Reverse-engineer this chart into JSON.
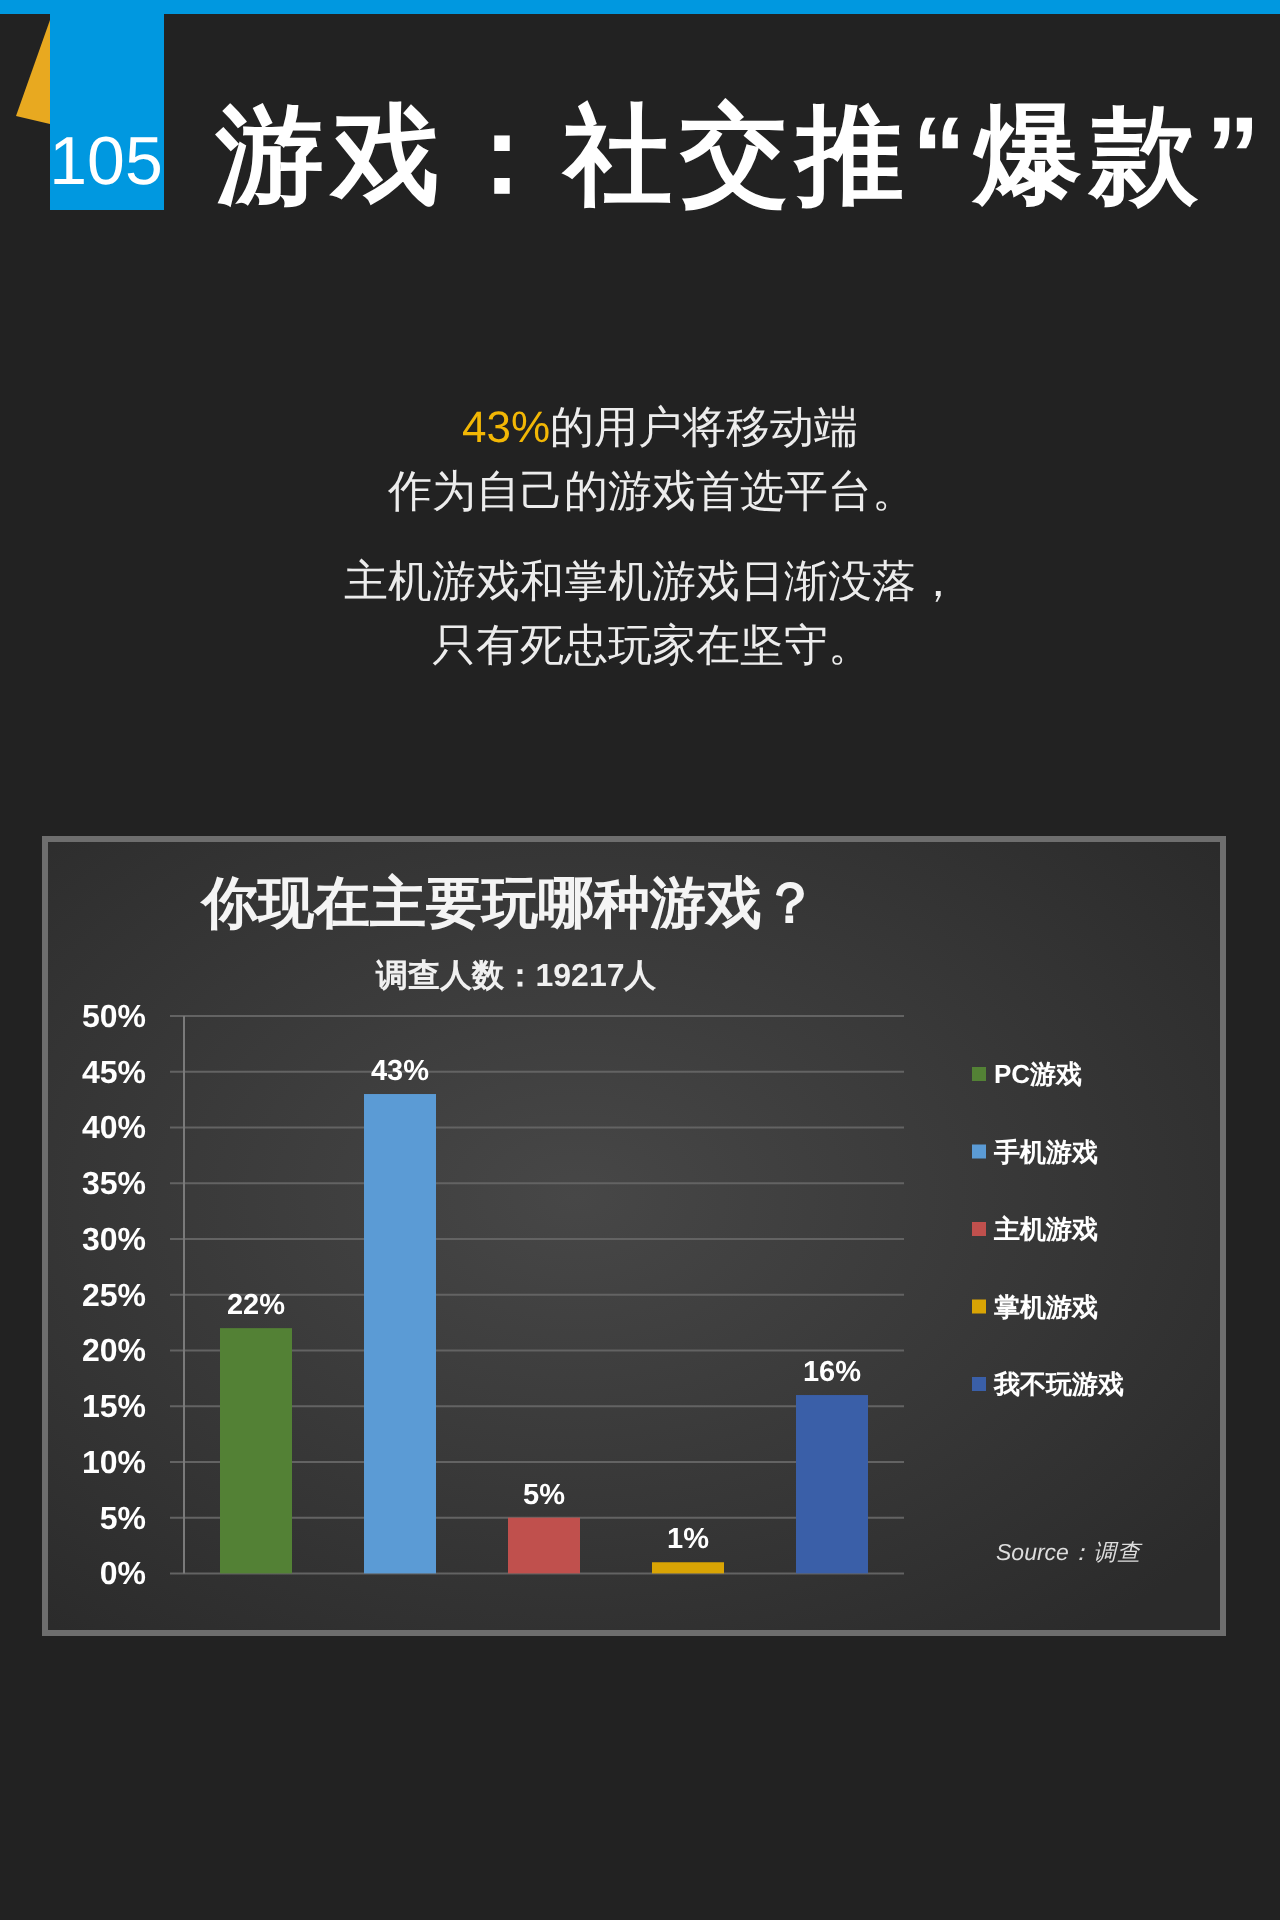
{
  "chart_data": {
    "type": "bar",
    "title": "你现在主要玩哪种游戏？",
    "subtitle": "调查人数：19217人",
    "categories": [
      null,
      null,
      null,
      null,
      null
    ],
    "series": [
      {
        "name": "PC游戏",
        "color": "#538135",
        "values": [
          22,
          null,
          null,
          null,
          null
        ],
        "value_labels": [
          "22%",
          null,
          null,
          null,
          null
        ]
      },
      {
        "name": "手机游戏",
        "color": "#5b9bd5",
        "values": [
          null,
          43,
          null,
          null,
          null
        ],
        "value_labels": [
          null,
          "43%",
          null,
          null,
          null
        ]
      },
      {
        "name": "主机游戏",
        "color": "#c0504d",
        "values": [
          null,
          null,
          5,
          null,
          null
        ],
        "value_labels": [
          null,
          null,
          "5%",
          null,
          null
        ]
      },
      {
        "name": "掌机游戏",
        "color": "#d9a404",
        "values": [
          null,
          null,
          null,
          1,
          null
        ],
        "value_labels": [
          null,
          null,
          null,
          "1%",
          null
        ]
      },
      {
        "name": "我不玩游戏",
        "color": "#3a5fa8",
        "values": [
          null,
          null,
          null,
          null,
          16
        ],
        "value_labels": [
          null,
          null,
          null,
          null,
          "16%"
        ]
      }
    ],
    "ylim": [
      0,
      50
    ],
    "yticks": [
      {
        "value": 0,
        "label": "0%"
      },
      {
        "value": 5,
        "label": "5%"
      },
      {
        "value": 10,
        "label": "10%"
      },
      {
        "value": 15,
        "label": "15%"
      },
      {
        "value": 20,
        "label": "20%"
      },
      {
        "value": 25,
        "label": "25%"
      },
      {
        "value": 30,
        "label": "30%"
      },
      {
        "value": 35,
        "label": "35%"
      },
      {
        "value": 40,
        "label": "40%"
      },
      {
        "value": 45,
        "label": "45%"
      },
      {
        "value": 50,
        "label": "50%"
      }
    ],
    "grid": "y",
    "legend": "right",
    "annotations": [
      "105",
      "游戏：社交推“爆款”",
      "43%",
      "的用户将移动端",
      "作为自己的游戏首选平台。",
      "主机游戏和掌机游戏日渐没落，",
      "只有死忠玩家在坚守。",
      "Source：调查"
    ]
  }
}
